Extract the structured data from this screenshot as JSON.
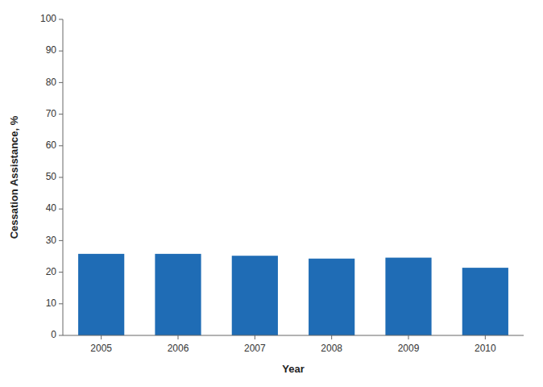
{
  "chart_data": {
    "type": "bar",
    "categories": [
      "2005",
      "2006",
      "2007",
      "2008",
      "2009",
      "2010"
    ],
    "values": [
      25.8,
      25.8,
      25.2,
      24.3,
      24.6,
      21.4
    ],
    "color": "#1F6CB5",
    "xlabel": "Year",
    "ylabel": "Cessation Assistance, %",
    "ylim": [
      0,
      100
    ],
    "yticks": [
      0,
      10,
      20,
      30,
      40,
      50,
      60,
      70,
      80,
      90,
      100
    ],
    "grid": false
  }
}
